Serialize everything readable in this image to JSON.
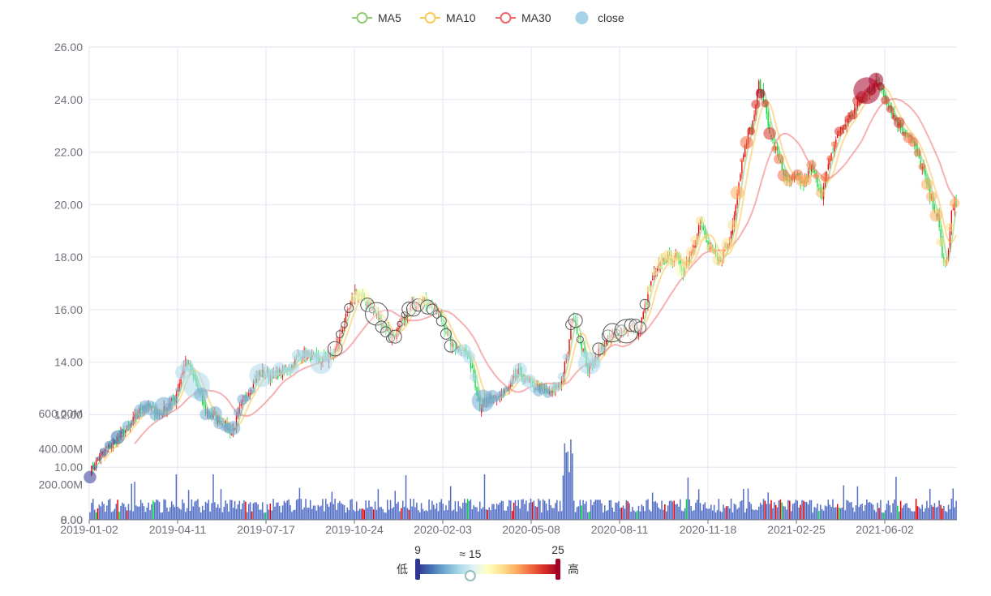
{
  "chart_data": {
    "type": "candlestick",
    "legend": {
      "placement": "top-center",
      "items": [
        {
          "name": "MA5",
          "color": "#91cc75",
          "marker": "circle-outline"
        },
        {
          "name": "MA10",
          "color": "#fac858",
          "marker": "circle-outline"
        },
        {
          "name": "MA30",
          "color": "#ee6666",
          "marker": "circle-outline"
        },
        {
          "name": "close",
          "color": "#a6d4e6",
          "marker": "circle-filled"
        }
      ]
    },
    "x_ticks": [
      "2019-01-02",
      "2019-04-11",
      "2019-07-17",
      "2019-10-24",
      "2020-02-03",
      "2020-05-08",
      "2020-08-11",
      "2020-11-18",
      "2021-02-25",
      "2021-06-02"
    ],
    "price_axis": {
      "min": 8,
      "max": 26,
      "ticks": [
        "8.00",
        "10.00",
        "12.00",
        "14.00",
        "16.00",
        "18.00",
        "20.00",
        "22.00",
        "24.00",
        "26.00"
      ],
      "grid": true
    },
    "volume_axis": {
      "min": 0,
      "max": 600000000,
      "ticks": [
        "0.00",
        "200.00M",
        "400.00M",
        "600.00M"
      ]
    },
    "close_anchors": [
      [
        0,
        9.8
      ],
      [
        6,
        10.4
      ],
      [
        15,
        10.9
      ],
      [
        25,
        11.5
      ],
      [
        35,
        12.4
      ],
      [
        45,
        12.0
      ],
      [
        55,
        12.6
      ],
      [
        62,
        14.1
      ],
      [
        68,
        13.3
      ],
      [
        75,
        12.1
      ],
      [
        85,
        11.8
      ],
      [
        92,
        11.3
      ],
      [
        100,
        12.6
      ],
      [
        110,
        13.6
      ],
      [
        120,
        13.5
      ],
      [
        130,
        13.8
      ],
      [
        138,
        14.4
      ],
      [
        148,
        14.0
      ],
      [
        158,
        14.3
      ],
      [
        165,
        15.5
      ],
      [
        172,
        16.7
      ],
      [
        180,
        16.2
      ],
      [
        188,
        15.6
      ],
      [
        195,
        15.0
      ],
      [
        200,
        15.2
      ],
      [
        208,
        16.1
      ],
      [
        215,
        16.4
      ],
      [
        222,
        16.1
      ],
      [
        228,
        15.6
      ],
      [
        235,
        14.6
      ],
      [
        242,
        14.5
      ],
      [
        248,
        13.8
      ],
      [
        253,
        12.3
      ],
      [
        258,
        12.5
      ],
      [
        265,
        12.7
      ],
      [
        272,
        13.0
      ],
      [
        278,
        13.6
      ],
      [
        285,
        13.2
      ],
      [
        292,
        13.0
      ],
      [
        298,
        12.8
      ],
      [
        305,
        13.2
      ],
      [
        310,
        14.3
      ],
      [
        313,
        15.8
      ],
      [
        318,
        14.9
      ],
      [
        323,
        13.7
      ],
      [
        330,
        14.4
      ],
      [
        338,
        15.0
      ],
      [
        346,
        15.2
      ],
      [
        352,
        15.4
      ],
      [
        356,
        15.1
      ],
      [
        360,
        16.1
      ],
      [
        365,
        17.2
      ],
      [
        372,
        17.9
      ],
      [
        380,
        18.0
      ],
      [
        385,
        17.5
      ],
      [
        390,
        18.2
      ],
      [
        396,
        19.4
      ],
      [
        400,
        18.5
      ],
      [
        408,
        17.8
      ],
      [
        415,
        18.6
      ],
      [
        420,
        20.5
      ],
      [
        425,
        22.4
      ],
      [
        430,
        23.1
      ],
      [
        434,
        24.6
      ],
      [
        438,
        23.8
      ],
      [
        442,
        22.5
      ],
      [
        447,
        21.8
      ],
      [
        452,
        20.8
      ],
      [
        458,
        21.0
      ],
      [
        463,
        20.8
      ],
      [
        468,
        21.4
      ],
      [
        475,
        20.4
      ],
      [
        478,
        21.2
      ],
      [
        485,
        22.7
      ],
      [
        492,
        23.2
      ],
      [
        498,
        23.8
      ],
      [
        505,
        24.4
      ],
      [
        512,
        24.7
      ],
      [
        518,
        23.8
      ],
      [
        525,
        23.0
      ],
      [
        532,
        22.6
      ],
      [
        540,
        21.4
      ],
      [
        545,
        20.3
      ],
      [
        550,
        19.5
      ],
      [
        553,
        18.0
      ],
      [
        556,
        17.7
      ],
      [
        559,
        19.7
      ],
      [
        562,
        20.0
      ]
    ],
    "candle_count": 563,
    "visual_map": {
      "dimension": "close",
      "min": 9,
      "max": 25,
      "current": "≈ 15",
      "low_label": "低",
      "high_label": "高",
      "min_label": "9",
      "max_label": "25",
      "colors": [
        "#313695",
        "#4575b4",
        "#74add1",
        "#abd9e9",
        "#e0f3f8",
        "#ffffbf",
        "#fee090",
        "#fdae61",
        "#f46d43",
        "#d73027",
        "#a50026"
      ]
    },
    "colors": {
      "up": "#ec0000",
      "down": "#00da3c",
      "volume": "#5470c6",
      "grid": "#e0e6f1",
      "axis": "#6e7079"
    }
  }
}
